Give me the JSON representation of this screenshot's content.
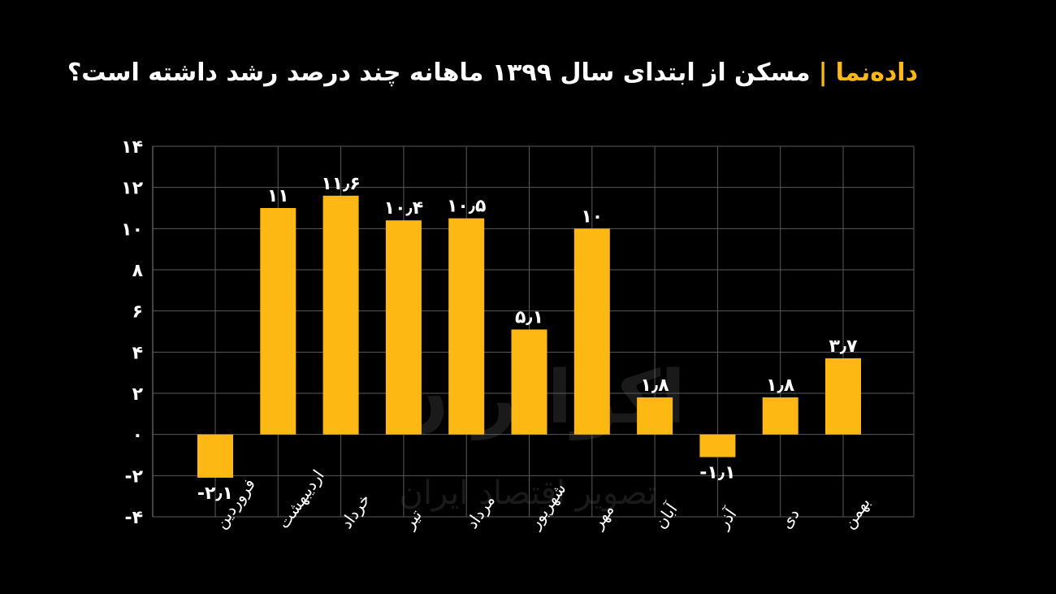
{
  "header": {
    "brand": "داده‌نما",
    "separator": "|",
    "question": "مسکن از ابتدای سال ۱۳۹۹ ماهانه چند درصد رشد داشته است؟"
  },
  "watermark": {
    "name": "اکوایران",
    "tagline": "تصویر اقتصاد ایران"
  },
  "colors": {
    "background": "#000000",
    "bar": "#FDB813",
    "grid": "#5a5a5a",
    "text": "#ffffff"
  },
  "chart_data": {
    "type": "bar",
    "title": "مسکن از ابتدای سال ۱۳۹۹ ماهانه چند درصد رشد داشته است؟",
    "categories": [
      "فروردین",
      "اردیبهشت",
      "خرداد",
      "تیر",
      "مرداد",
      "شهریور",
      "مهر",
      "آبان",
      "آذر",
      "دی",
      "بهمن"
    ],
    "values": [
      -2.1,
      11,
      11.6,
      10.4,
      10.5,
      5.1,
      10,
      1.8,
      -1.1,
      1.8,
      3.7
    ],
    "value_labels": [
      "-۲٫۱",
      "۱۱",
      "۱۱٫۶",
      "۱۰٫۴",
      "۱۰٫۵",
      "۵٫۱",
      "۱۰",
      "۱٫۸",
      "-۱٫۱",
      "۱٫۸",
      "۳٫۷"
    ],
    "ylim": [
      -4,
      14
    ],
    "yticks": [
      -4,
      -2,
      0,
      2,
      4,
      6,
      8,
      10,
      12,
      14
    ],
    "ytick_labels": [
      "-۴",
      "-۲",
      "۰",
      "۲",
      "۴",
      "۶",
      "۸",
      "۱۰",
      "۱۲",
      "۱۴"
    ],
    "grid": true,
    "legend": "none"
  }
}
